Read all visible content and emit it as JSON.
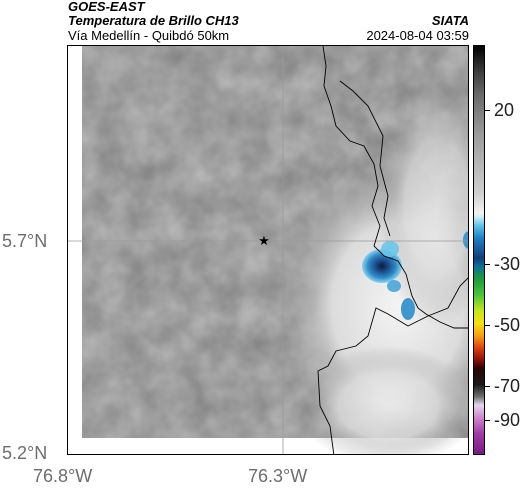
{
  "header": {
    "satellite": "GOES-EAST",
    "product": "Temperatura de Brillo CH13",
    "route": "Vía Medellín - Quibdó 50km",
    "agency": "SIATA",
    "datetime": "2024-08-04 03:59"
  },
  "map": {
    "lat_ticks": [
      "5.7°N",
      "5.2°N"
    ],
    "lon_ticks": [
      "76.8°W",
      "76.3°W"
    ],
    "marker_icon": "star-icon"
  },
  "colorbar": {
    "labels": [
      "20",
      "-30",
      "-50",
      "-70",
      "-90"
    ]
  },
  "colors": {
    "cloud_gray": "#8a8a8a",
    "cold_cloud_blue": "#1f6fb0",
    "boundary": "#000000"
  }
}
